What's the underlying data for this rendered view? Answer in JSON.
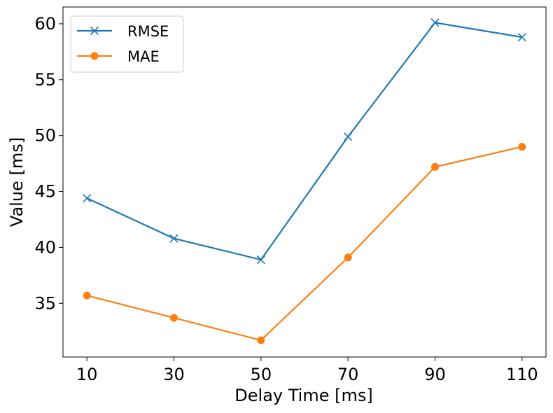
{
  "chart_data": {
    "type": "line",
    "x": [
      10,
      30,
      50,
      70,
      90,
      110
    ],
    "xticks": [
      "10",
      "30",
      "50",
      "70",
      "90",
      "110"
    ],
    "yticks": [
      "35",
      "40",
      "45",
      "50",
      "55",
      "60"
    ],
    "xlabel": "Delay Time [ms]",
    "ylabel": "Value [ms]",
    "ylim": [
      30.2,
      61.5
    ],
    "xlim": [
      4.5,
      115.5
    ],
    "grid": false,
    "legend_position": "top-left",
    "series": [
      {
        "name": "RMSE",
        "marker": "x",
        "color": "#1f77b4",
        "values": [
          44.4,
          40.8,
          38.9,
          49.9,
          60.1,
          58.8
        ]
      },
      {
        "name": "MAE",
        "marker": "o",
        "color": "#ff7f0e",
        "values": [
          35.7,
          33.7,
          31.7,
          39.1,
          47.2,
          49.0
        ]
      }
    ]
  }
}
